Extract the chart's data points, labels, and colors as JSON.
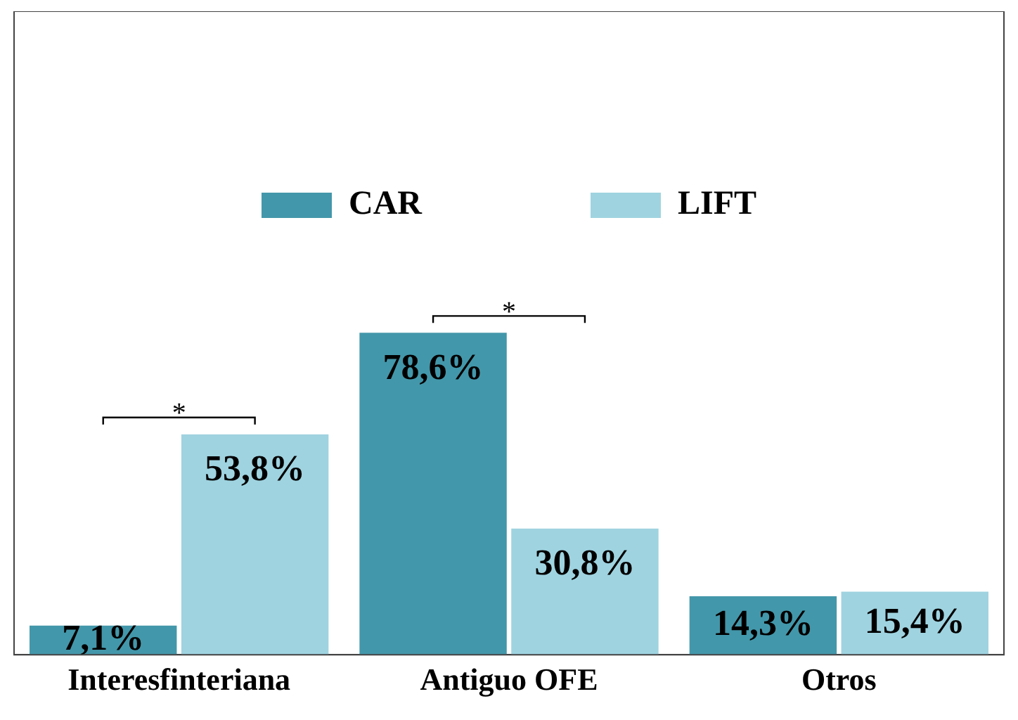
{
  "chart_data": {
    "type": "bar",
    "categories": [
      "Interesfinteriana",
      "Antiguo OFE",
      "Otros"
    ],
    "series": [
      {
        "name": "CAR",
        "color": "#4397aa",
        "values": [
          7.1,
          78.6,
          14.3
        ],
        "value_labels": [
          "7,1%",
          "78,6%",
          "14,3%"
        ]
      },
      {
        "name": "LIFT",
        "color": "#9fd3e0",
        "values": [
          53.8,
          30.8,
          15.4
        ],
        "value_labels": [
          "53,8%",
          "30,8%",
          "15,4%"
        ]
      }
    ],
    "annotations": [
      "*",
      "*"
    ],
    "legend": "top",
    "grid": false
  }
}
